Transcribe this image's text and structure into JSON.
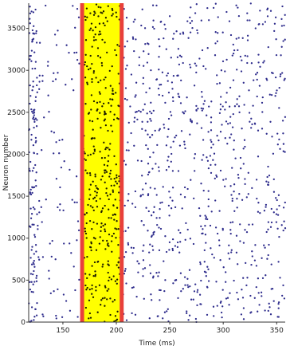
{
  "chart_data": {
    "type": "scatter",
    "title": "",
    "xlabel": "Time (ms)",
    "ylabel": "Neuron number",
    "xlim": [
      118,
      358
    ],
    "ylim": [
      0,
      3800
    ],
    "x_ticks": [
      150,
      200,
      250,
      300,
      350
    ],
    "y_ticks": [
      0,
      500,
      1000,
      1500,
      2000,
      2500,
      3000,
      3500
    ],
    "grid": false,
    "legend": "none",
    "dot_color": "#2e2c8c",
    "highlight_window": {
      "x_start": 168,
      "x_end": 205,
      "fill": "#ffff00",
      "border_color": "#e8403a",
      "dot_color": "#1a1a00"
    },
    "series": [
      {
        "x_range": [
          118,
          126
        ],
        "relative_density": 3.2
      },
      {
        "x_range": [
          126,
          168
        ],
        "relative_density": 0.45
      },
      {
        "x_range": [
          168,
          205
        ],
        "relative_density": 2.0
      },
      {
        "x_range": [
          205,
          358
        ],
        "relative_density": 1.0
      }
    ]
  }
}
